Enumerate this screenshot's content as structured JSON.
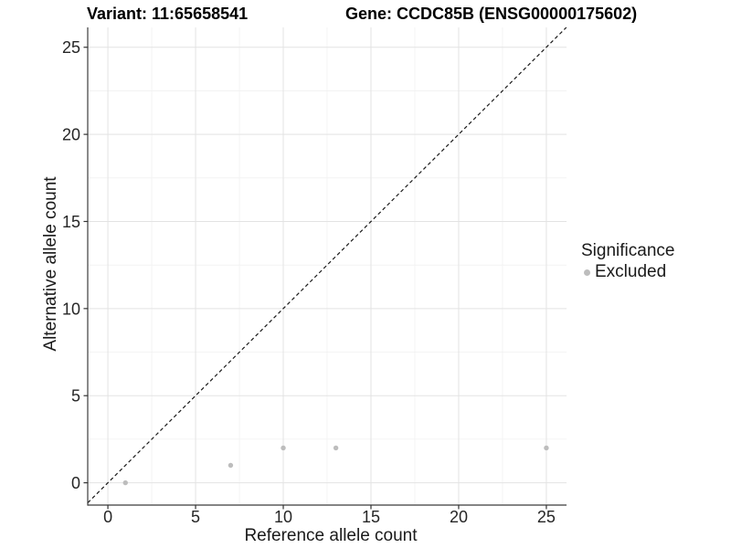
{
  "chart_data": {
    "type": "scatter",
    "titles": {
      "left": "Variant: 11:65658541",
      "right": "Gene: CCDC85B (ENSG00000175602)"
    },
    "xlabel": "Reference allele count",
    "ylabel": "Alternative allele count",
    "xlim": [
      -1.15,
      26.15
    ],
    "ylim": [
      -1.28,
      26.14
    ],
    "xticks": [
      0,
      5,
      10,
      15,
      20,
      25
    ],
    "yticks": [
      0,
      5,
      10,
      15,
      20,
      25
    ],
    "minor_step": 2.5,
    "grid": true,
    "identity_line": {
      "show": true,
      "style": "dashed",
      "color": "#1a1a1a"
    },
    "series": [
      {
        "name": "Excluded",
        "color": "#bdbdbd",
        "point_radius": 2.7,
        "points": [
          [
            1,
            0
          ],
          [
            7,
            1
          ],
          [
            10,
            2
          ],
          [
            13,
            2
          ],
          [
            25,
            2
          ]
        ]
      }
    ],
    "legend": {
      "title": "Significance",
      "position": "right",
      "items": [
        {
          "label": "Excluded",
          "color": "#bdbdbd"
        }
      ]
    },
    "colors": {
      "grid_major": "#e3e3e3",
      "grid_minor": "#f1f1f1",
      "axis_line": "#3c3c3c",
      "tick_mark": "#333333",
      "tick_label": "#262626"
    }
  }
}
